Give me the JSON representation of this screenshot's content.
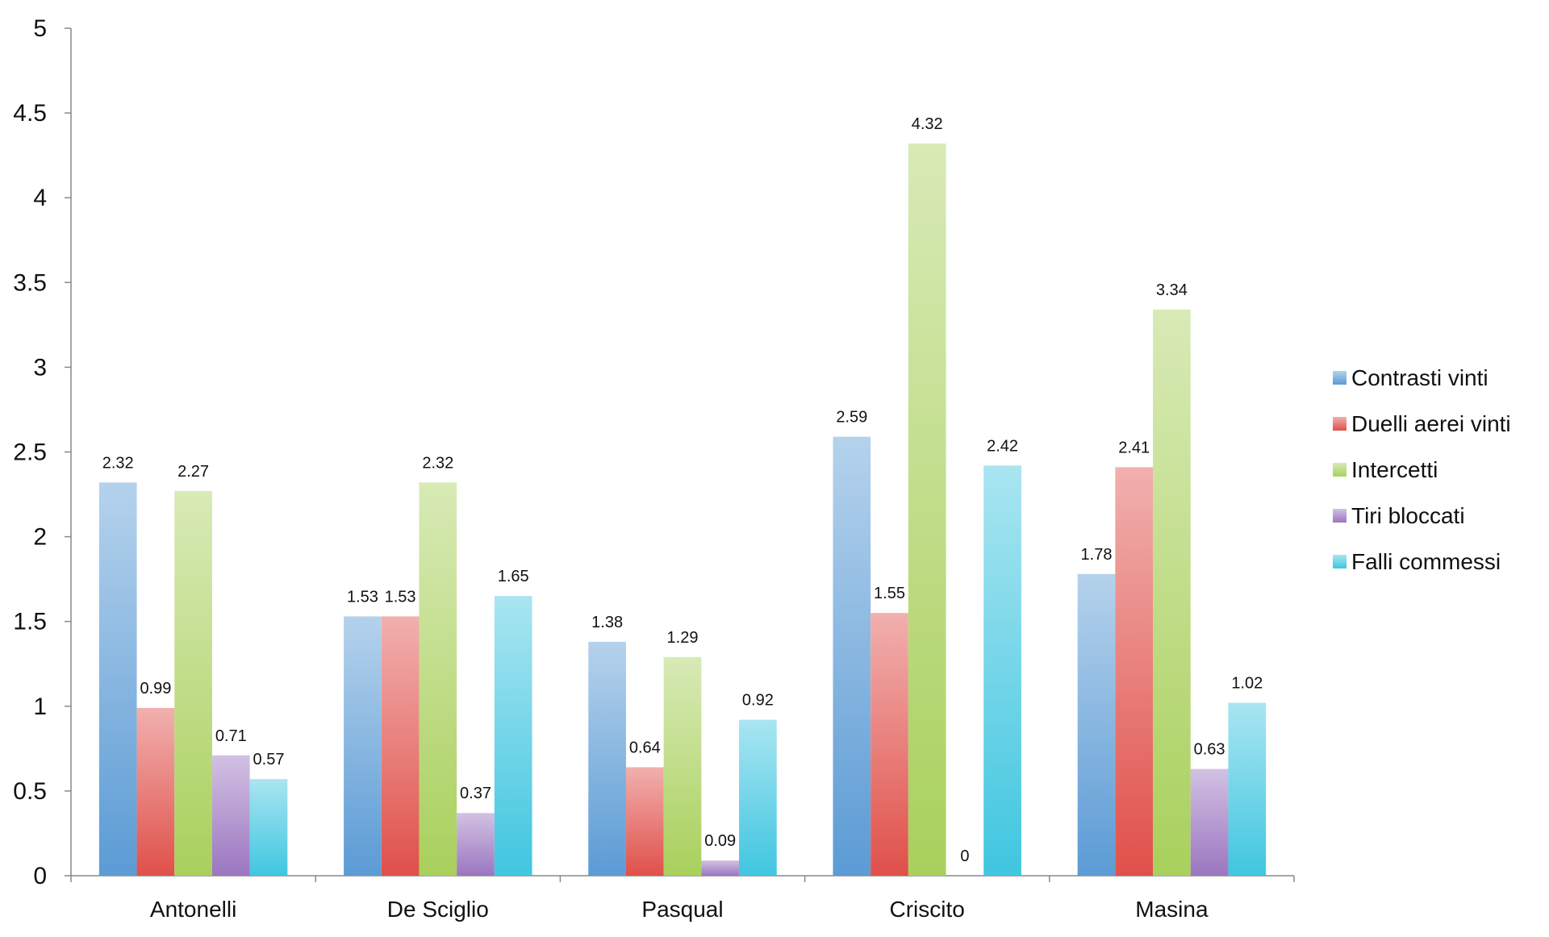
{
  "chart_data": {
    "type": "bar",
    "categories": [
      "Antonelli",
      "De Sciglio",
      "Pasqual",
      "Criscito",
      "Masina"
    ],
    "series": [
      {
        "name": "Contrasti vinti",
        "color": "#5b9bd5",
        "values": [
          2.32,
          1.53,
          1.38,
          2.59,
          1.78
        ]
      },
      {
        "name": "Duelli aerei vinti",
        "color": "#e0504a",
        "values": [
          0.99,
          1.53,
          0.64,
          1.55,
          2.41
        ]
      },
      {
        "name": "Intercetti",
        "color": "#a9d05c",
        "values": [
          2.27,
          2.32,
          1.29,
          4.32,
          3.34
        ]
      },
      {
        "name": "Tiri bloccati",
        "color": "#9b76c0",
        "values": [
          0.71,
          0.37,
          0.09,
          0,
          0.63
        ]
      },
      {
        "name": "Falli commessi",
        "color": "#40c6e0",
        "values": [
          0.57,
          1.65,
          0.92,
          2.42,
          1.02
        ]
      }
    ],
    "data_labels": [
      [
        "2.32",
        "1.53",
        "1.38",
        "2.59",
        "1.78"
      ],
      [
        "0.99",
        "1.53",
        "0.64",
        "1.55",
        "2.41"
      ],
      [
        "2.27",
        "2.32",
        "1.29",
        "4.32",
        "3.34"
      ],
      [
        "0.71",
        "0.37",
        "0.09",
        "0",
        "0.63"
      ],
      [
        "0.57",
        "1.65",
        "0.92",
        "2.42",
        "1.02"
      ]
    ],
    "yticks": [
      "0",
      "0.5",
      "1",
      "1.5",
      "2",
      "2.5",
      "3",
      "3.5",
      "4",
      "4.5",
      "5"
    ],
    "ylim": [
      0,
      5
    ],
    "grid": false,
    "legend_position": "right"
  }
}
